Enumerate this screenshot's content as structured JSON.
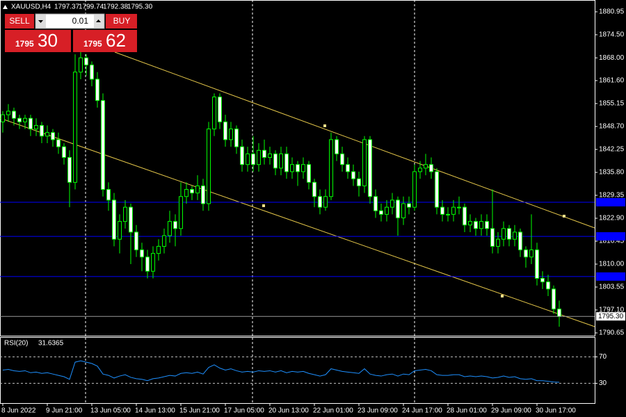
{
  "header": {
    "symbol": "XAUUSD,H4",
    "ohlc_labels": [
      "1797.37",
      "1799.74",
      "1792.38",
      "1795.30"
    ]
  },
  "trade_panel": {
    "sell": "SELL",
    "buy": "BUY",
    "lot": "0.01",
    "sell_big": "1795",
    "sell_pips": "30",
    "buy_big": "1795",
    "buy_pips": "62"
  },
  "chart_data": [
    {
      "type": "candlestick",
      "candle_color": "#00ff00",
      "bull_fill": "#000000",
      "bear_fill": "#ffffff",
      "ylim": [
        1789.87,
        1884.27
      ],
      "yticks": [
        {
          "value": 1880.95,
          "label": "1880.95"
        },
        {
          "value": 1874.5,
          "label": "1874.50"
        },
        {
          "value": 1868.0,
          "label": "1868.00"
        },
        {
          "value": 1861.6,
          "label": "1861.60"
        },
        {
          "value": 1855.15,
          "label": "1855.15"
        },
        {
          "value": 1848.7,
          "label": "1848.70"
        },
        {
          "value": 1842.25,
          "label": "1842.25"
        },
        {
          "value": 1835.8,
          "label": "1835.80"
        },
        {
          "value": 1829.35,
          "label": "1829.35"
        },
        {
          "value": 1822.9,
          "label": "1822.90"
        },
        {
          "value": 1816.45,
          "label": "1816.45"
        },
        {
          "value": 1810.0,
          "label": "1810.00"
        },
        {
          "value": 1803.55,
          "label": "1803.55"
        },
        {
          "value": 1797.1,
          "label": "1797.10"
        },
        {
          "value": 1790.65,
          "label": "1790.65"
        }
      ],
      "levels": [
        1827.4,
        1817.8,
        1806.5
      ],
      "level_color": "#0000ff",
      "categories": [
        "8 Jun 2022",
        null,
        null,
        null,
        null,
        null,
        null,
        null,
        "9 Jun 21:00",
        null,
        null,
        null,
        null,
        null,
        null,
        null,
        "13 Jun 05:00",
        null,
        null,
        null,
        null,
        null,
        null,
        null,
        "14 Jun 13:00",
        null,
        null,
        null,
        null,
        null,
        null,
        null,
        "15 Jun 21:00",
        null,
        null,
        null,
        null,
        null,
        null,
        null,
        "17 Jun 05:00",
        null,
        null,
        null,
        null,
        null,
        null,
        null,
        "20 Jun 13:00",
        null,
        null,
        null,
        null,
        null,
        null,
        null,
        "22 Jun 01:00",
        null,
        null,
        null,
        null,
        null,
        null,
        null,
        "23 Jun 09:00",
        null,
        null,
        null,
        null,
        null,
        null,
        null,
        "24 Jun 17:00",
        null,
        null,
        null,
        null,
        null,
        null,
        null,
        "28 Jun 01:00",
        null,
        null,
        null,
        null,
        null,
        null,
        null,
        "29 Jun 09:00",
        null,
        null,
        null,
        null,
        null,
        null,
        null,
        "30 Jun 17:00",
        null,
        null,
        null,
        null
      ],
      "ohlc": [
        [
          1850,
          1853,
          1847,
          1852
        ],
        [
          1852,
          1855,
          1850,
          1853
        ],
        [
          1853,
          1854,
          1849,
          1851
        ],
        [
          1851,
          1852,
          1848,
          1850
        ],
        [
          1850,
          1852,
          1848,
          1851
        ],
        [
          1851,
          1852,
          1846,
          1848
        ],
        [
          1848,
          1851,
          1846,
          1849
        ],
        [
          1849,
          1850,
          1844,
          1846
        ],
        [
          1846,
          1849,
          1844,
          1847
        ],
        [
          1847,
          1848,
          1843,
          1845
        ],
        [
          1845,
          1847,
          1841,
          1843
        ],
        [
          1843,
          1844,
          1838,
          1840
        ],
        [
          1840,
          1842,
          1826,
          1833
        ],
        [
          1833,
          1869,
          1831,
          1864
        ],
        [
          1864,
          1870,
          1862,
          1868
        ],
        [
          1868,
          1869,
          1863,
          1866
        ],
        [
          1866,
          1867,
          1860,
          1862
        ],
        [
          1862,
          1864,
          1854,
          1856
        ],
        [
          1856,
          1858,
          1829,
          1831
        ],
        [
          1831,
          1833,
          1825,
          1828
        ],
        [
          1828,
          1830,
          1815,
          1817
        ],
        [
          1817,
          1824,
          1813,
          1822
        ],
        [
          1822,
          1828,
          1820,
          1826
        ],
        [
          1826,
          1827,
          1810,
          1819
        ],
        [
          1819,
          1821,
          1812,
          1814
        ],
        [
          1814,
          1816,
          1808,
          1812
        ],
        [
          1812,
          1814,
          1806,
          1808
        ],
        [
          1808,
          1815,
          1806,
          1813
        ],
        [
          1813,
          1817,
          1811,
          1815
        ],
        [
          1815,
          1820,
          1813,
          1818
        ],
        [
          1818,
          1825,
          1816,
          1822
        ],
        [
          1822,
          1824,
          1815,
          1820
        ],
        [
          1820,
          1833,
          1818,
          1829
        ],
        [
          1829,
          1833,
          1827,
          1831
        ],
        [
          1831,
          1832,
          1828,
          1830
        ],
        [
          1830,
          1835,
          1828,
          1832
        ],
        [
          1832,
          1834,
          1825,
          1827
        ],
        [
          1827,
          1850,
          1825,
          1848
        ],
        [
          1848,
          1858,
          1846,
          1857
        ],
        [
          1857,
          1858,
          1848,
          1850
        ],
        [
          1850,
          1852,
          1843,
          1845
        ],
        [
          1845,
          1850,
          1843,
          1848
        ],
        [
          1848,
          1849,
          1841,
          1843
        ],
        [
          1843,
          1845,
          1836,
          1838
        ],
        [
          1838,
          1843,
          1836,
          1841
        ],
        [
          1841,
          1846,
          1836,
          1838
        ],
        [
          1838,
          1844,
          1836,
          1842
        ],
        [
          1842,
          1845,
          1838,
          1840
        ],
        [
          1840,
          1843,
          1838,
          1841
        ],
        [
          1841,
          1842,
          1835,
          1837
        ],
        [
          1837,
          1843,
          1835,
          1841
        ],
        [
          1841,
          1843,
          1834,
          1836
        ],
        [
          1836,
          1840,
          1834,
          1838
        ],
        [
          1838,
          1839,
          1832,
          1836
        ],
        [
          1836,
          1840,
          1834,
          1838
        ],
        [
          1838,
          1839,
          1831,
          1833
        ],
        [
          1833,
          1834,
          1826,
          1829
        ],
        [
          1829,
          1831,
          1824,
          1826
        ],
        [
          1826,
          1831,
          1825,
          1829
        ],
        [
          1829,
          1847,
          1828,
          1845
        ],
        [
          1845,
          1846,
          1839,
          1841
        ],
        [
          1841,
          1843,
          1836,
          1838
        ],
        [
          1838,
          1840,
          1834,
          1836
        ],
        [
          1836,
          1838,
          1832,
          1834
        ],
        [
          1834,
          1836,
          1829,
          1832
        ],
        [
          1832,
          1846,
          1830,
          1845
        ],
        [
          1845,
          1846,
          1827,
          1829
        ],
        [
          1829,
          1831,
          1823,
          1825
        ],
        [
          1825,
          1827,
          1822,
          1824
        ],
        [
          1824,
          1828,
          1822,
          1826
        ],
        [
          1826,
          1830,
          1824,
          1828
        ],
        [
          1828,
          1829,
          1818,
          1823
        ],
        [
          1823,
          1829,
          1821,
          1827
        ],
        [
          1827,
          1829,
          1824,
          1826
        ],
        [
          1826,
          1838,
          1825,
          1836
        ],
        [
          1836,
          1839,
          1834,
          1837
        ],
        [
          1837,
          1841,
          1835,
          1838
        ],
        [
          1838,
          1840,
          1834,
          1836
        ],
        [
          1836,
          1837,
          1824,
          1826
        ],
        [
          1826,
          1828,
          1822,
          1824
        ],
        [
          1824,
          1826,
          1822,
          1824
        ],
        [
          1824,
          1828,
          1822,
          1826
        ],
        [
          1826,
          1829,
          1824,
          1826
        ],
        [
          1826,
          1827,
          1819,
          1821
        ],
        [
          1821,
          1824,
          1819,
          1822
        ],
        [
          1822,
          1823,
          1818,
          1820
        ],
        [
          1820,
          1824,
          1818,
          1822
        ],
        [
          1822,
          1824,
          1818,
          1820
        ],
        [
          1820,
          1831,
          1813,
          1815
        ],
        [
          1815,
          1819,
          1813,
          1817
        ],
        [
          1817,
          1822,
          1815,
          1820
        ],
        [
          1820,
          1821,
          1815,
          1817
        ],
        [
          1817,
          1821,
          1815,
          1819
        ],
        [
          1819,
          1820,
          1812,
          1814
        ],
        [
          1814,
          1815,
          1809,
          1812
        ],
        [
          1812,
          1824,
          1810,
          1814
        ],
        [
          1814,
          1816,
          1804,
          1806
        ],
        [
          1806,
          1808,
          1803,
          1805
        ],
        [
          1805,
          1807,
          1801,
          1803
        ],
        [
          1803,
          1804,
          1796,
          1797.37
        ],
        [
          1797.37,
          1799.74,
          1792.38,
          1795.3
        ]
      ]
    },
    {
      "type": "line",
      "name": "RSI(20)",
      "color": "#1e90ff",
      "ylim": [
        0,
        100
      ],
      "yticks": [
        30,
        70
      ],
      "values": [
        50,
        51,
        49,
        48,
        49,
        46,
        47,
        45,
        46,
        44,
        42,
        40,
        36,
        62,
        64,
        62,
        60,
        56,
        44,
        42,
        38,
        41,
        43,
        39,
        37,
        36,
        34,
        37,
        38,
        40,
        42,
        41,
        45,
        46,
        45,
        47,
        44,
        54,
        58,
        53,
        50,
        52,
        49,
        47,
        48,
        47,
        49,
        48,
        49,
        47,
        49,
        46,
        48,
        47,
        48,
        45,
        43,
        41,
        43,
        52,
        50,
        48,
        47,
        46,
        45,
        52,
        44,
        42,
        41,
        43,
        44,
        41,
        44,
        43,
        49,
        50,
        51,
        49,
        43,
        42,
        42,
        43,
        43,
        40,
        41,
        40,
        41,
        40,
        38,
        39,
        41,
        39,
        40,
        37,
        36,
        37,
        34,
        34,
        33,
        32,
        31.6365
      ]
    }
  ]
}
